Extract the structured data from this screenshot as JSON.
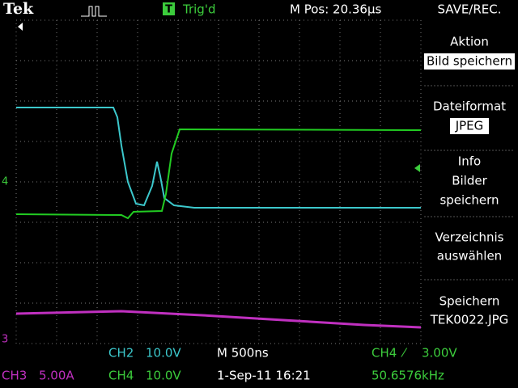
{
  "header": {
    "brand": "Tek",
    "trigger_icon": "T",
    "trigger_status": "Trig'd",
    "position": "M Pos: 20.36µs",
    "menu_title": "SAVE/REC."
  },
  "menu": [
    {
      "label": "Aktion",
      "value": "Bild speichern"
    },
    {
      "label": "Dateiformat",
      "value": "JPEG"
    },
    {
      "lines": [
        "Info",
        "Bilder",
        "speichern"
      ]
    },
    {
      "lines": [
        "Verzeichnis",
        "auswählen"
      ]
    },
    {
      "lines": [
        "Speichern",
        "TEK0022.JPG"
      ]
    }
  ],
  "markers": {
    "ch4": "4",
    "ch3": "3"
  },
  "status": {
    "ch2": "CH2",
    "ch2_scale": "10.0V",
    "timebase": "M 500ns",
    "trigger_source": "CH4",
    "trigger_slope": "⁄",
    "trigger_level": "3.00V",
    "ch3": "CH3",
    "ch3_scale": "5.00A",
    "ch4": "CH4",
    "ch4_scale": "10.0V",
    "date": "1-Sep-11 16:21",
    "frequency": "50.6576kHz"
  }
}
